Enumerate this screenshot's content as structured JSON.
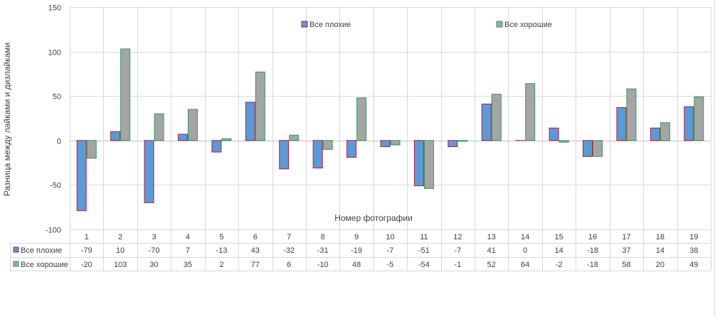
{
  "colors": {
    "bad_fill": "#5b9bd5",
    "bad_stroke": "#c0143c",
    "good_fill": "#a5a5a5",
    "good_stroke": "#2e9a5a",
    "grid": "#d9d9d9",
    "axis": "#bfbfbf",
    "text": "#404040"
  },
  "chart_data": {
    "type": "bar",
    "xlabel": "Номер фотографии",
    "ylabel": "Разница между лайками и дизлайками",
    "ylim": [
      -100,
      150
    ],
    "yticks": [
      -100,
      -50,
      0,
      50,
      100,
      150
    ],
    "grid": true,
    "legend_position": "top",
    "data_table": true,
    "categories": [
      "1",
      "2",
      "3",
      "4",
      "5",
      "6",
      "7",
      "8",
      "9",
      "10",
      "11",
      "12",
      "13",
      "14",
      "15",
      "16",
      "17",
      "18",
      "19"
    ],
    "series": [
      {
        "name": "Все плохие",
        "values": [
          -79,
          10,
          -70,
          7,
          -13,
          43,
          -32,
          -31,
          -19,
          -7,
          -51,
          -7,
          41,
          0,
          14,
          -18,
          37,
          14,
          38
        ]
      },
      {
        "name": "Все хорошие",
        "values": [
          -20,
          103,
          30,
          35,
          2,
          77,
          6,
          -10,
          48,
          -5,
          -54,
          -1,
          52,
          64,
          -2,
          -18,
          58,
          20,
          49
        ]
      }
    ]
  }
}
